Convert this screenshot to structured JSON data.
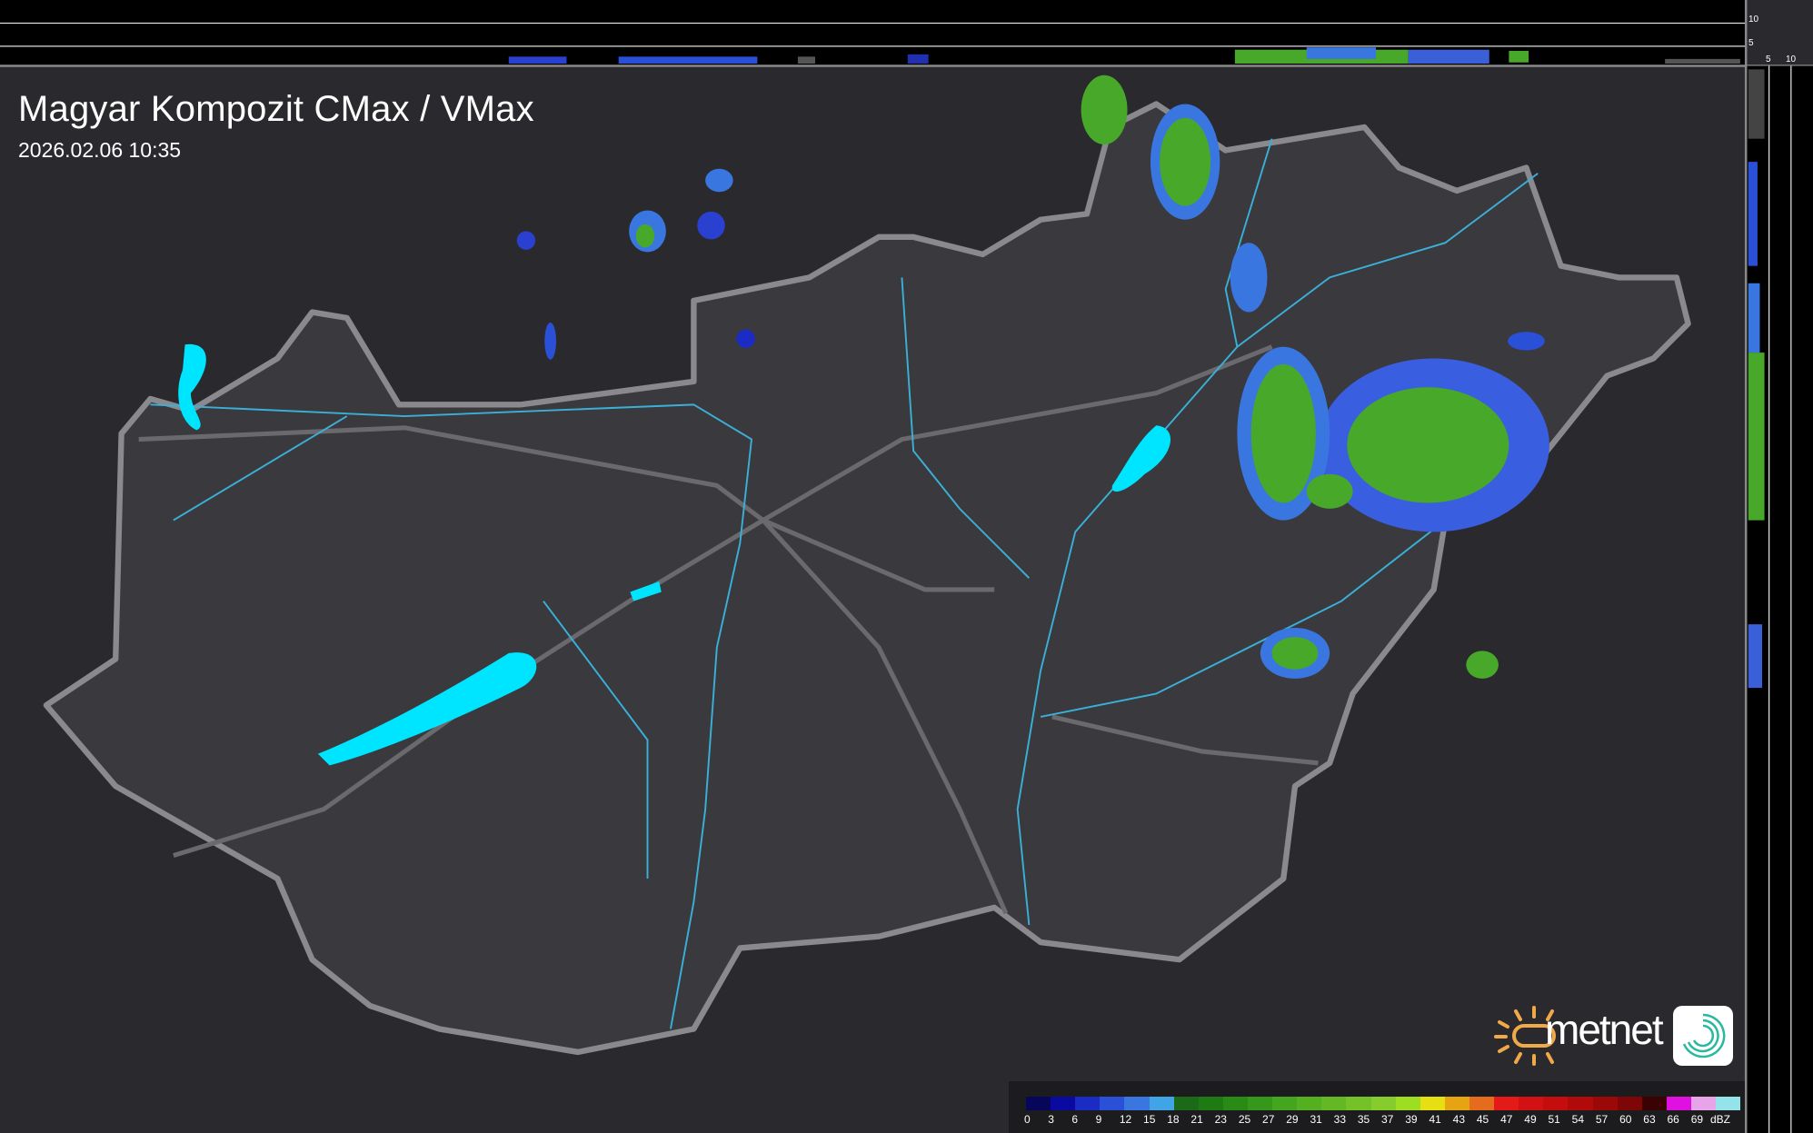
{
  "header": {
    "title": "Magyar Kompozit CMax / VMax",
    "timestamp": "2026.02.06 10:35"
  },
  "top_panel": {
    "ticks": [
      "10",
      "5"
    ]
  },
  "side_panel": {
    "ticks": [
      "5",
      "10"
    ]
  },
  "legend": {
    "unit": "dBZ",
    "labels": [
      "0",
      "3",
      "6",
      "9",
      "12",
      "15",
      "18",
      "21",
      "23",
      "25",
      "27",
      "29",
      "31",
      "33",
      "35",
      "37",
      "39",
      "41",
      "43",
      "45",
      "47",
      "49",
      "51",
      "54",
      "57",
      "60",
      "63",
      "66",
      "69"
    ],
    "colors": [
      "#06065a",
      "#0a0aa0",
      "#1a2cc4",
      "#2a50d8",
      "#3a76e0",
      "#40a4e6",
      "#1a6a18",
      "#1e7a12",
      "#2a8a16",
      "#36981a",
      "#44a61e",
      "#54b020",
      "#64b824",
      "#74c228",
      "#86cc2c",
      "#9ede22",
      "#e6e012",
      "#e6a412",
      "#e46c1c",
      "#e41a18",
      "#d21212",
      "#c40e0e",
      "#b00a0a",
      "#9a0808",
      "#7e0606",
      "#3a0202",
      "#e010e0",
      "#e8a4e8",
      "#94e2ea"
    ]
  },
  "map_colors": {
    "background": "#2a2a2e",
    "country": "#3a3a3e",
    "border": "#8a8a8e",
    "rivers": "#3ab0d8",
    "lakes": "#00e5ff",
    "radar_light": "#3a5ee0",
    "radar_strong": "#48a82a"
  },
  "logo": {
    "brand": "metnet",
    "sun_color": "#f0a848",
    "icon_color": "#2ab8a0"
  }
}
